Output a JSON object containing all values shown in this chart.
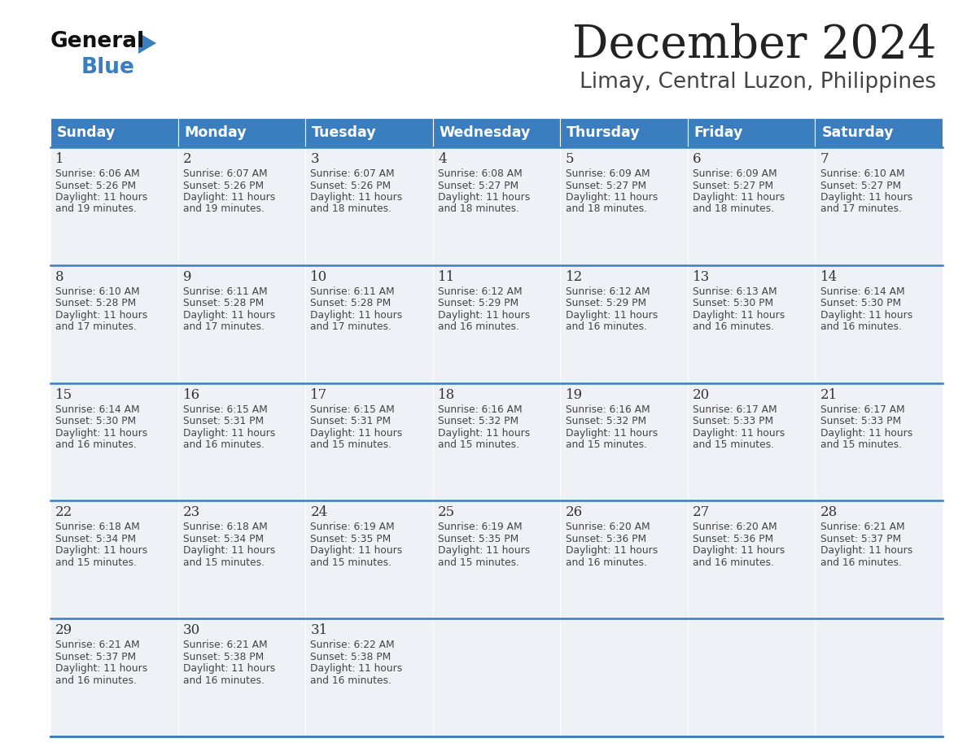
{
  "title": "December 2024",
  "subtitle": "Limay, Central Luzon, Philippines",
  "header_color": "#3a7ebf",
  "header_text_color": "#ffffff",
  "cell_bg_even": "#eef2f7",
  "cell_bg_odd": "#eef2f7",
  "border_color": "#3a7ebf",
  "text_color": "#444444",
  "day_num_color": "#333333",
  "days_of_week": [
    "Sunday",
    "Monday",
    "Tuesday",
    "Wednesday",
    "Thursday",
    "Friday",
    "Saturday"
  ],
  "weeks": [
    [
      {
        "day": 1,
        "sunrise": "6:06 AM",
        "sunset": "5:26 PM",
        "daylight": "11 hours\nand 19 minutes."
      },
      {
        "day": 2,
        "sunrise": "6:07 AM",
        "sunset": "5:26 PM",
        "daylight": "11 hours\nand 19 minutes."
      },
      {
        "day": 3,
        "sunrise": "6:07 AM",
        "sunset": "5:26 PM",
        "daylight": "11 hours\nand 18 minutes."
      },
      {
        "day": 4,
        "sunrise": "6:08 AM",
        "sunset": "5:27 PM",
        "daylight": "11 hours\nand 18 minutes."
      },
      {
        "day": 5,
        "sunrise": "6:09 AM",
        "sunset": "5:27 PM",
        "daylight": "11 hours\nand 18 minutes."
      },
      {
        "day": 6,
        "sunrise": "6:09 AM",
        "sunset": "5:27 PM",
        "daylight": "11 hours\nand 18 minutes."
      },
      {
        "day": 7,
        "sunrise": "6:10 AM",
        "sunset": "5:27 PM",
        "daylight": "11 hours\nand 17 minutes."
      }
    ],
    [
      {
        "day": 8,
        "sunrise": "6:10 AM",
        "sunset": "5:28 PM",
        "daylight": "11 hours\nand 17 minutes."
      },
      {
        "day": 9,
        "sunrise": "6:11 AM",
        "sunset": "5:28 PM",
        "daylight": "11 hours\nand 17 minutes."
      },
      {
        "day": 10,
        "sunrise": "6:11 AM",
        "sunset": "5:28 PM",
        "daylight": "11 hours\nand 17 minutes."
      },
      {
        "day": 11,
        "sunrise": "6:12 AM",
        "sunset": "5:29 PM",
        "daylight": "11 hours\nand 16 minutes."
      },
      {
        "day": 12,
        "sunrise": "6:12 AM",
        "sunset": "5:29 PM",
        "daylight": "11 hours\nand 16 minutes."
      },
      {
        "day": 13,
        "sunrise": "6:13 AM",
        "sunset": "5:30 PM",
        "daylight": "11 hours\nand 16 minutes."
      },
      {
        "day": 14,
        "sunrise": "6:14 AM",
        "sunset": "5:30 PM",
        "daylight": "11 hours\nand 16 minutes."
      }
    ],
    [
      {
        "day": 15,
        "sunrise": "6:14 AM",
        "sunset": "5:30 PM",
        "daylight": "11 hours\nand 16 minutes."
      },
      {
        "day": 16,
        "sunrise": "6:15 AM",
        "sunset": "5:31 PM",
        "daylight": "11 hours\nand 16 minutes."
      },
      {
        "day": 17,
        "sunrise": "6:15 AM",
        "sunset": "5:31 PM",
        "daylight": "11 hours\nand 15 minutes."
      },
      {
        "day": 18,
        "sunrise": "6:16 AM",
        "sunset": "5:32 PM",
        "daylight": "11 hours\nand 15 minutes."
      },
      {
        "day": 19,
        "sunrise": "6:16 AM",
        "sunset": "5:32 PM",
        "daylight": "11 hours\nand 15 minutes."
      },
      {
        "day": 20,
        "sunrise": "6:17 AM",
        "sunset": "5:33 PM",
        "daylight": "11 hours\nand 15 minutes."
      },
      {
        "day": 21,
        "sunrise": "6:17 AM",
        "sunset": "5:33 PM",
        "daylight": "11 hours\nand 15 minutes."
      }
    ],
    [
      {
        "day": 22,
        "sunrise": "6:18 AM",
        "sunset": "5:34 PM",
        "daylight": "11 hours\nand 15 minutes."
      },
      {
        "day": 23,
        "sunrise": "6:18 AM",
        "sunset": "5:34 PM",
        "daylight": "11 hours\nand 15 minutes."
      },
      {
        "day": 24,
        "sunrise": "6:19 AM",
        "sunset": "5:35 PM",
        "daylight": "11 hours\nand 15 minutes."
      },
      {
        "day": 25,
        "sunrise": "6:19 AM",
        "sunset": "5:35 PM",
        "daylight": "11 hours\nand 15 minutes."
      },
      {
        "day": 26,
        "sunrise": "6:20 AM",
        "sunset": "5:36 PM",
        "daylight": "11 hours\nand 16 minutes."
      },
      {
        "day": 27,
        "sunrise": "6:20 AM",
        "sunset": "5:36 PM",
        "daylight": "11 hours\nand 16 minutes."
      },
      {
        "day": 28,
        "sunrise": "6:21 AM",
        "sunset": "5:37 PM",
        "daylight": "11 hours\nand 16 minutes."
      }
    ],
    [
      {
        "day": 29,
        "sunrise": "6:21 AM",
        "sunset": "5:37 PM",
        "daylight": "11 hours\nand 16 minutes."
      },
      {
        "day": 30,
        "sunrise": "6:21 AM",
        "sunset": "5:38 PM",
        "daylight": "11 hours\nand 16 minutes."
      },
      {
        "day": 31,
        "sunrise": "6:22 AM",
        "sunset": "5:38 PM",
        "daylight": "11 hours\nand 16 minutes."
      },
      null,
      null,
      null,
      null
    ]
  ]
}
